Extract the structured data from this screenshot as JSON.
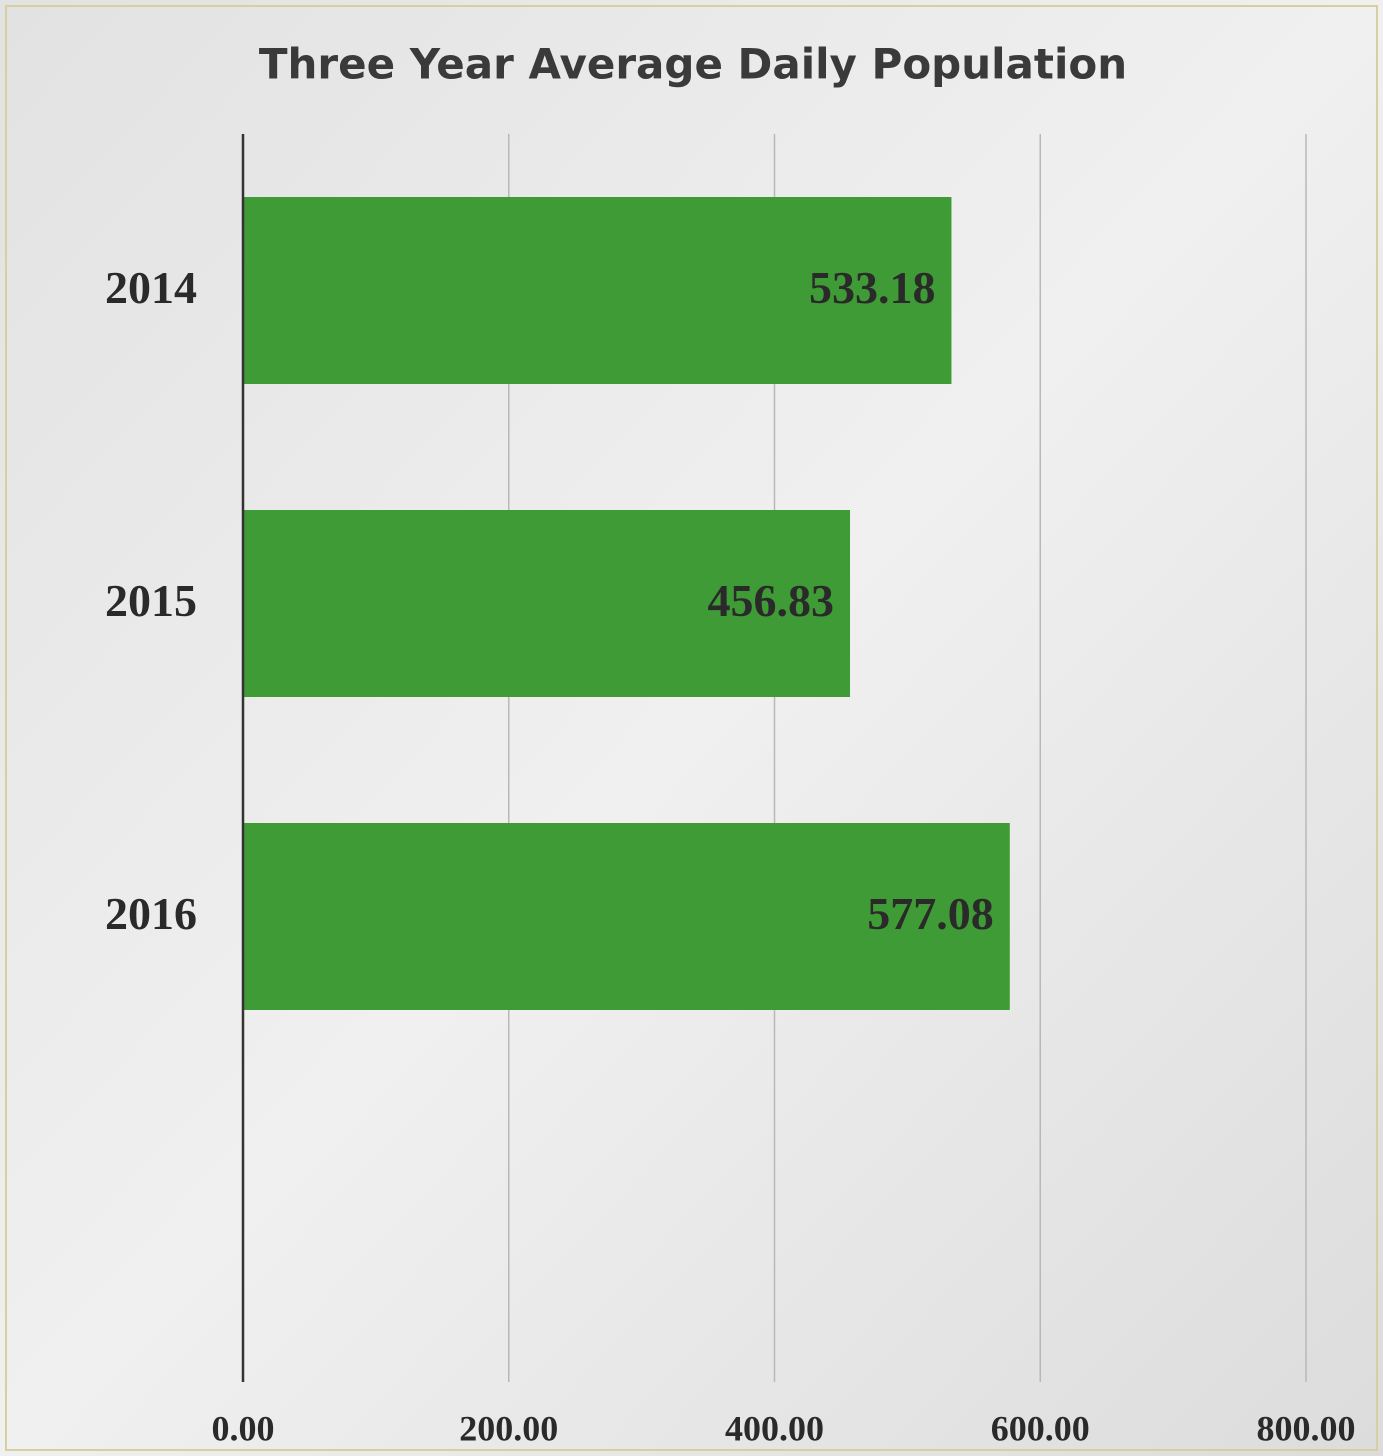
{
  "chart_data": {
    "type": "bar",
    "orientation": "horizontal",
    "title": "Three Year Average Daily Population",
    "categories": [
      "2014",
      "2015",
      "2016"
    ],
    "values": [
      533.18,
      456.83,
      577.08
    ],
    "color": "#3f9b35",
    "xlim": [
      0,
      800
    ],
    "xticks": [
      {
        "value": 0,
        "label": "0.00"
      },
      {
        "value": 200,
        "label": "200.00"
      },
      {
        "value": 400,
        "label": "400.00"
      },
      {
        "value": 600,
        "label": "600.00"
      },
      {
        "value": 800,
        "label": "800.00"
      }
    ],
    "grid": true
  }
}
